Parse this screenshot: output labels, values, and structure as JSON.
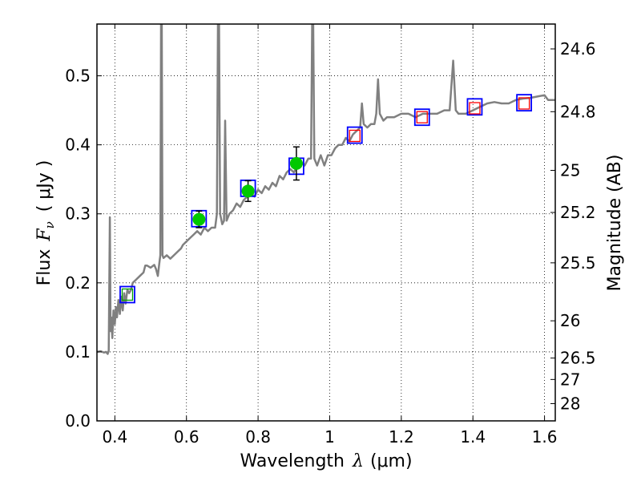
{
  "chart_data": {
    "type": "line",
    "xlabel_prefix": "Wavelength",
    "xlabel_symbol": "λ",
    "xlabel_unit": "(μm)",
    "ylabel_prefix": "Flux",
    "ylabel_symbol": "F",
    "ylabel_sub": "ν",
    "ylabel_unit": "( μJy )",
    "y2label": "Magnitude (AB)",
    "xlim": [
      0.35,
      1.63
    ],
    "ylim": [
      0.0,
      0.575
    ],
    "grid": true,
    "x_ticks": [
      0.4,
      0.6,
      0.8,
      1.0,
      1.2,
      1.4,
      1.6
    ],
    "x_tick_labels": [
      "0.4",
      "0.6",
      "0.8",
      "1",
      "1.2",
      "1.4",
      "1.6"
    ],
    "y_ticks": [
      0.0,
      0.1,
      0.2,
      0.3,
      0.4,
      0.5
    ],
    "y_tick_labels": [
      "0.0",
      "0.1",
      "0.2",
      "0.3",
      "0.4",
      "0.5"
    ],
    "mag_ticks": [
      {
        "flux": 0.539,
        "label": "24.6"
      },
      {
        "flux": 0.448,
        "label": "24.8"
      },
      {
        "flux": 0.363,
        "label": "25"
      },
      {
        "flux": 0.302,
        "label": "25.2"
      },
      {
        "flux": 0.229,
        "label": "25.5"
      },
      {
        "flux": 0.145,
        "label": "26"
      },
      {
        "flux": 0.091,
        "label": "26.5"
      },
      {
        "flux": 0.06,
        "label": "27"
      },
      {
        "flux": 0.025,
        "label": "28"
      }
    ],
    "spectrum": {
      "color": "#808080",
      "points": [
        [
          0.35,
          0.1
        ],
        [
          0.36,
          0.101
        ],
        [
          0.37,
          0.099
        ],
        [
          0.375,
          0.1
        ],
        [
          0.38,
          0.097
        ],
        [
          0.383,
          0.102
        ],
        [
          0.386,
          0.295
        ],
        [
          0.388,
          0.13
        ],
        [
          0.39,
          0.15
        ],
        [
          0.393,
          0.12
        ],
        [
          0.396,
          0.16
        ],
        [
          0.4,
          0.14
        ],
        [
          0.403,
          0.165
        ],
        [
          0.406,
          0.15
        ],
        [
          0.41,
          0.175
        ],
        [
          0.414,
          0.155
        ],
        [
          0.418,
          0.18
        ],
        [
          0.422,
          0.16
        ],
        [
          0.426,
          0.185
        ],
        [
          0.43,
          0.17
        ],
        [
          0.435,
          0.19
        ],
        [
          0.44,
          0.185
        ],
        [
          0.445,
          0.19
        ],
        [
          0.45,
          0.2
        ],
        [
          0.46,
          0.205
        ],
        [
          0.47,
          0.21
        ],
        [
          0.48,
          0.215
        ],
        [
          0.485,
          0.225
        ],
        [
          0.49,
          0.225
        ],
        [
          0.5,
          0.222
        ],
        [
          0.51,
          0.226
        ],
        [
          0.515,
          0.22
        ],
        [
          0.52,
          0.21
        ],
        [
          0.524,
          0.228
        ],
        [
          0.527,
          0.24
        ],
        [
          0.529,
          0.575
        ],
        [
          0.531,
          0.575
        ],
        [
          0.533,
          0.24
        ],
        [
          0.536,
          0.236
        ],
        [
          0.545,
          0.24
        ],
        [
          0.555,
          0.235
        ],
        [
          0.565,
          0.24
        ],
        [
          0.575,
          0.245
        ],
        [
          0.585,
          0.25
        ],
        [
          0.59,
          0.255
        ],
        [
          0.6,
          0.26
        ],
        [
          0.61,
          0.265
        ],
        [
          0.62,
          0.27
        ],
        [
          0.63,
          0.275
        ],
        [
          0.64,
          0.27
        ],
        [
          0.65,
          0.28
        ],
        [
          0.66,
          0.275
        ],
        [
          0.67,
          0.28
        ],
        [
          0.68,
          0.28
        ],
        [
          0.685,
          0.3
        ],
        [
          0.688,
          0.575
        ],
        [
          0.691,
          0.575
        ],
        [
          0.694,
          0.3
        ],
        [
          0.7,
          0.285
        ],
        [
          0.705,
          0.29
        ],
        [
          0.708,
          0.435
        ],
        [
          0.712,
          0.29
        ],
        [
          0.72,
          0.3
        ],
        [
          0.73,
          0.305
        ],
        [
          0.74,
          0.315
        ],
        [
          0.75,
          0.31
        ],
        [
          0.76,
          0.32
        ],
        [
          0.77,
          0.325
        ],
        [
          0.78,
          0.33
        ],
        [
          0.79,
          0.325
        ],
        [
          0.8,
          0.335
        ],
        [
          0.81,
          0.33
        ],
        [
          0.82,
          0.34
        ],
        [
          0.83,
          0.335
        ],
        [
          0.84,
          0.345
        ],
        [
          0.85,
          0.34
        ],
        [
          0.86,
          0.355
        ],
        [
          0.87,
          0.35
        ],
        [
          0.88,
          0.36
        ],
        [
          0.89,
          0.365
        ],
        [
          0.9,
          0.36
        ],
        [
          0.91,
          0.37
        ],
        [
          0.92,
          0.375
        ],
        [
          0.93,
          0.37
        ],
        [
          0.94,
          0.38
        ],
        [
          0.948,
          0.38
        ],
        [
          0.951,
          0.575
        ],
        [
          0.954,
          0.575
        ],
        [
          0.957,
          0.38
        ],
        [
          0.965,
          0.37
        ],
        [
          0.975,
          0.385
        ],
        [
          0.985,
          0.37
        ],
        [
          0.995,
          0.385
        ],
        [
          1.005,
          0.385
        ],
        [
          1.015,
          0.395
        ],
        [
          1.025,
          0.4
        ],
        [
          1.035,
          0.4
        ],
        [
          1.045,
          0.41
        ],
        [
          1.055,
          0.405
        ],
        [
          1.065,
          0.415
        ],
        [
          1.075,
          0.42
        ],
        [
          1.085,
          0.425
        ],
        [
          1.09,
          0.46
        ],
        [
          1.095,
          0.43
        ],
        [
          1.105,
          0.425
        ],
        [
          1.115,
          0.43
        ],
        [
          1.125,
          0.43
        ],
        [
          1.13,
          0.445
        ],
        [
          1.135,
          0.495
        ],
        [
          1.14,
          0.445
        ],
        [
          1.15,
          0.435
        ],
        [
          1.16,
          0.44
        ],
        [
          1.18,
          0.44
        ],
        [
          1.2,
          0.445
        ],
        [
          1.22,
          0.445
        ],
        [
          1.24,
          0.44
        ],
        [
          1.26,
          0.445
        ],
        [
          1.28,
          0.445
        ],
        [
          1.3,
          0.445
        ],
        [
          1.32,
          0.45
        ],
        [
          1.335,
          0.45
        ],
        [
          1.345,
          0.522
        ],
        [
          1.352,
          0.45
        ],
        [
          1.36,
          0.445
        ],
        [
          1.38,
          0.445
        ],
        [
          1.4,
          0.45
        ],
        [
          1.42,
          0.455
        ],
        [
          1.44,
          0.46
        ],
        [
          1.46,
          0.462
        ],
        [
          1.48,
          0.46
        ],
        [
          1.5,
          0.46
        ],
        [
          1.52,
          0.465
        ],
        [
          1.54,
          0.467
        ],
        [
          1.56,
          0.468
        ],
        [
          1.58,
          0.47
        ],
        [
          1.6,
          0.472
        ],
        [
          1.61,
          0.465
        ],
        [
          1.63,
          0.465
        ]
      ]
    },
    "model_boxes": {
      "edge_color": "#0000ff",
      "points": [
        [
          0.435,
          0.183
        ],
        [
          0.635,
          0.293
        ],
        [
          0.772,
          0.337
        ],
        [
          0.907,
          0.369
        ],
        [
          1.07,
          0.414
        ],
        [
          1.258,
          0.44
        ],
        [
          1.405,
          0.455
        ],
        [
          1.543,
          0.461
        ]
      ]
    },
    "observed": {
      "color": "#00c800",
      "points": [
        {
          "x": 0.635,
          "y": 0.292,
          "err": 0.012
        },
        {
          "x": 0.772,
          "y": 0.333,
          "err": 0.015
        },
        {
          "x": 0.907,
          "y": 0.373,
          "err": 0.024
        }
      ]
    },
    "open_squares": {
      "points": [
        {
          "x": 0.435,
          "y": 0.183,
          "color": "#00a000"
        },
        {
          "x": 1.07,
          "y": 0.413,
          "color": "#ff0000"
        },
        {
          "x": 1.258,
          "y": 0.44,
          "color": "#ff0000"
        },
        {
          "x": 1.405,
          "y": 0.453,
          "color": "#ff0000"
        },
        {
          "x": 1.543,
          "y": 0.46,
          "color": "#ff0000"
        }
      ]
    }
  }
}
